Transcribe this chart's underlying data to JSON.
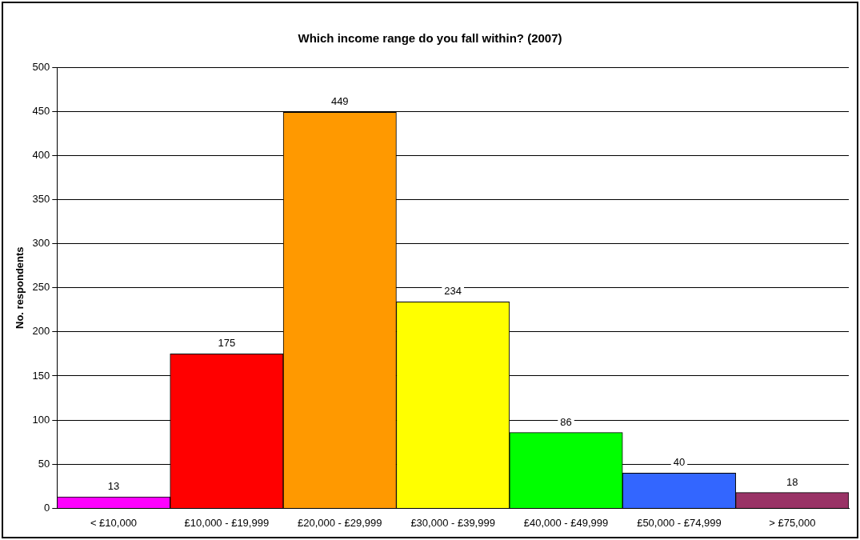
{
  "chart_data": {
    "type": "bar",
    "title": "Which income range do you fall within? (2007)",
    "ylabel": "No. respondents",
    "categories": [
      "< £10,000",
      "£10,000 - £19,999",
      "£20,000 - £29,999",
      "£30,000 - £39,999",
      "£40,000 - £49,999",
      "£50,000 - £74,999",
      "> £75,000"
    ],
    "values": [
      13,
      175,
      449,
      234,
      86,
      40,
      18
    ],
    "colors": [
      "#ff00ff",
      "#ff0000",
      "#ff9900",
      "#ffff00",
      "#00ff00",
      "#3366ff",
      "#993366"
    ],
    "ylim": [
      0,
      500
    ],
    "yticks": [
      0,
      50,
      100,
      150,
      200,
      250,
      300,
      350,
      400,
      450,
      500
    ],
    "grid": "y",
    "data_labels": true,
    "legend": false
  }
}
